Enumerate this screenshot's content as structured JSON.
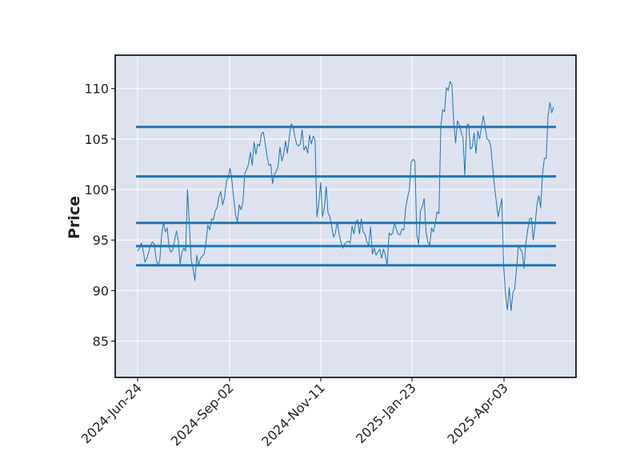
{
  "chart_data": {
    "type": "line",
    "title": "",
    "xlabel": "",
    "ylabel": "Price",
    "x_tick_labels": [
      "2024-Jun-24",
      "2024-Sep-02",
      "2024-Nov-11",
      "2025-Jan-23",
      "2025-Apr-03"
    ],
    "y_ticks": [
      85,
      90,
      95,
      100,
      105,
      110
    ],
    "ylim": [
      81.4,
      113.3
    ],
    "grid": true,
    "colors": {
      "background": "#dde2ee",
      "series": "#1f77b4",
      "grid": "#ffffff",
      "frame": "#000000"
    },
    "series": [
      {
        "values": [
          93.9,
          94.2,
          94.7,
          94.0,
          92.8,
          93.2,
          93.8,
          94.5,
          94.8,
          94.6,
          93.2,
          92.4,
          93.0,
          95.5,
          96.8,
          95.8,
          96.2,
          94.3,
          93.8,
          94.0,
          95.0,
          95.9,
          95.0,
          92.6,
          93.8,
          94.2,
          93.9,
          100.0,
          96.5,
          93.0,
          92.2,
          91.0,
          93.5,
          92.5,
          93.2,
          93.4,
          93.6,
          94.8,
          96.5,
          96.0,
          97.1,
          97.0,
          97.9,
          98.2,
          99.3,
          99.8,
          98.5,
          99.2,
          100.8,
          101.2,
          102.1,
          100.9,
          99.1,
          97.5,
          96.8,
          98.5,
          98.0,
          98.8,
          101.6,
          102.0,
          102.5,
          103.7,
          102.4,
          104.7,
          103.5,
          104.5,
          104.3,
          105.5,
          105.7,
          104.6,
          103.3,
          102.4,
          102.5,
          100.6,
          101.5,
          101.8,
          102.3,
          104.2,
          102.8,
          103.5,
          104.8,
          103.6,
          105.1,
          106.5,
          106.3,
          105.3,
          104.5,
          104.3,
          104.5,
          105.9,
          103.9,
          104.3,
          103.6,
          105.4,
          104.5,
          105.3,
          104.9,
          97.3,
          98.6,
          100.7,
          97.3,
          98.2,
          100.3,
          97.7,
          97.3,
          96.3,
          95.3,
          95.7,
          96.8,
          95.6,
          94.8,
          94.2,
          94.6,
          94.8,
          94.9,
          94.7,
          96.4,
          95.6,
          96.8,
          97.0,
          95.6,
          97.1,
          95.8,
          95.6,
          94.8,
          94.5,
          96.3,
          93.6,
          94.2,
          93.5,
          93.8,
          94.1,
          93.2,
          94.1,
          93.5,
          92.5,
          95.7,
          95.5,
          95.7,
          96.8,
          96.0,
          95.6,
          95.5,
          96.1,
          96.0,
          98.2,
          99.2,
          100.0,
          102.7,
          103.0,
          102.8,
          95.5,
          94.6,
          97.9,
          98.3,
          99.1,
          95.8,
          94.8,
          94.5,
          96.2,
          95.8,
          96.7,
          97.8,
          97.6,
          106.2,
          107.9,
          107.7,
          110.1,
          109.8,
          110.7,
          110.4,
          106.6,
          104.6,
          106.8,
          106.4,
          105.7,
          105.1,
          101.4,
          106.3,
          106.5,
          104.0,
          104.2,
          105.6,
          103.6,
          105.8,
          105.0,
          106.3,
          107.3,
          106.1,
          105.0,
          104.9,
          104.3,
          102.3,
          100.4,
          98.8,
          97.3,
          98.2,
          99.1,
          92.4,
          89.6,
          88.1,
          90.3,
          88.0,
          89.8,
          90.2,
          92.3,
          94.5,
          94.1,
          93.8,
          92.2,
          94.7,
          96.0,
          97.1,
          97.2,
          95.0,
          96.5,
          98.5,
          99.4,
          98.2,
          101.5,
          103.1,
          103.1,
          107.3,
          108.6,
          107.6,
          108.2
        ]
      }
    ],
    "horizontal_lines": [
      106.2,
      101.3,
      96.7,
      94.4,
      92.5
    ]
  }
}
